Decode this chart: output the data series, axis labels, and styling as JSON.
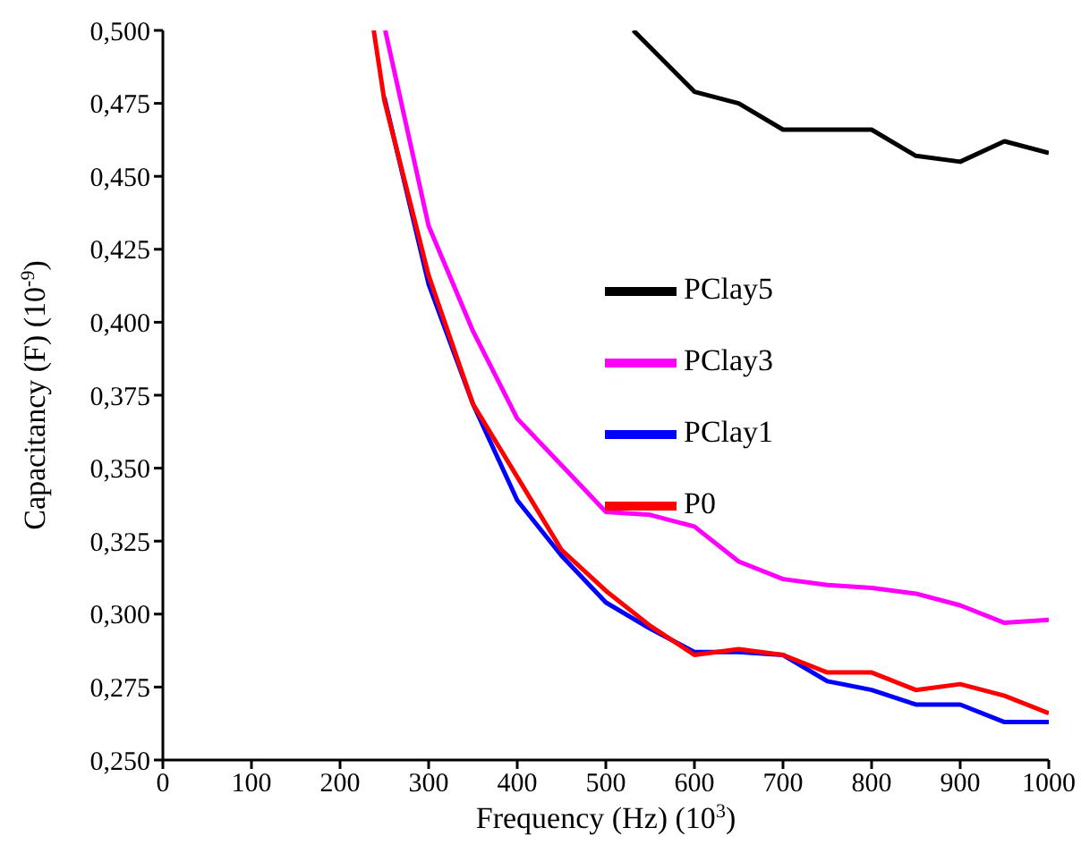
{
  "chart_data": {
    "type": "line",
    "xlabel": "Frequency (Hz) (10$^{3}$)",
    "ylabel": "Capacitancy (F) (10$^{-9}$)",
    "xlim": [
      0,
      1000
    ],
    "xticks": [
      0,
      100,
      200,
      300,
      400,
      500,
      600,
      700,
      800,
      900,
      1000
    ],
    "ylim": [
      0.25,
      0.5
    ],
    "yticks": [
      {
        "value": 0.25,
        "label": "0,250"
      },
      {
        "value": 0.275,
        "label": "0,275"
      },
      {
        "value": 0.3,
        "label": "0,300"
      },
      {
        "value": 0.325,
        "label": "0,325"
      },
      {
        "value": 0.35,
        "label": "0,350"
      },
      {
        "value": 0.375,
        "label": "0,375"
      },
      {
        "value": 0.4,
        "label": "0,400"
      },
      {
        "value": 0.425,
        "label": "0,425"
      },
      {
        "value": 0.45,
        "label": "0,450"
      },
      {
        "value": 0.475,
        "label": "0,475"
      },
      {
        "value": 0.5,
        "label": "0,500"
      }
    ],
    "grid": false,
    "legend": "right",
    "marker": "none",
    "line_style": "solid",
    "series": [
      {
        "name": "PClay5",
        "color": "#000000",
        "x": [
          531,
          600,
          650,
          700,
          750,
          800,
          850,
          900,
          950,
          1000
        ],
        "values": [
          0.5,
          0.479,
          0.475,
          0.466,
          0.466,
          0.466,
          0.457,
          0.455,
          0.462,
          0.458
        ]
      },
      {
        "name": "PClay3",
        "color": "#ff00ff",
        "x": [
          251,
          300,
          350,
          400,
          450,
          500,
          550,
          600,
          650,
          700,
          750,
          800,
          850,
          900,
          950,
          1000
        ],
        "values": [
          0.5,
          0.433,
          0.397,
          0.367,
          0.351,
          0.335,
          0.334,
          0.33,
          0.318,
          0.312,
          0.31,
          0.309,
          0.307,
          0.303,
          0.297,
          0.298
        ]
      },
      {
        "name": "PClay1",
        "color": "#0000ff",
        "x": [
          250,
          300,
          350,
          400,
          450,
          500,
          550,
          600,
          650,
          700,
          750,
          800,
          850,
          900,
          950,
          1000
        ],
        "values": [
          0.477,
          0.413,
          0.372,
          0.339,
          0.32,
          0.304,
          0.295,
          0.287,
          0.287,
          0.286,
          0.277,
          0.274,
          0.269,
          0.269,
          0.263,
          0.263
        ]
      },
      {
        "name": "P0",
        "color": "#ff0000",
        "x": [
          238,
          250,
          300,
          350,
          400,
          450,
          500,
          550,
          600,
          650,
          700,
          750,
          800,
          850,
          900,
          950,
          1000
        ],
        "values": [
          0.5,
          0.476,
          0.416,
          0.372,
          0.347,
          0.322,
          0.308,
          0.296,
          0.286,
          0.288,
          0.286,
          0.28,
          0.28,
          0.274,
          0.276,
          0.272,
          0.266
        ]
      }
    ]
  }
}
